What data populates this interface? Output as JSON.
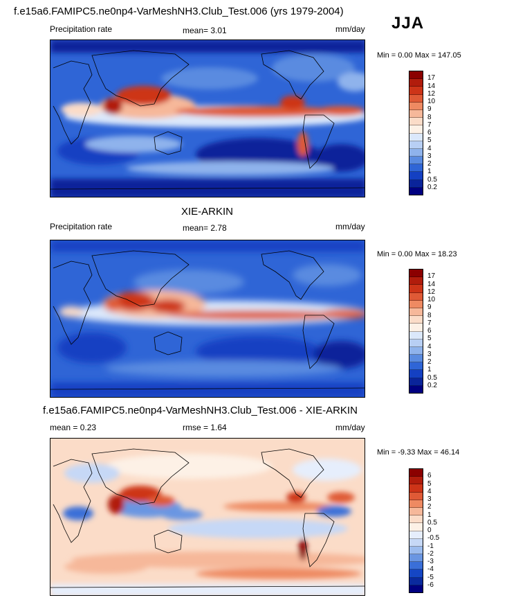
{
  "season": "JJA",
  "panels": [
    {
      "title": "f.e15a6.FAMIPC5.ne0np4-VarMeshNH3.Club_Test.006 (yrs 1979-2004)",
      "left_label": "Precipitation rate",
      "center_label": "mean=  3.01",
      "units": "mm/day",
      "minmax": "Min =   0.00 Max = 147.05",
      "colorbar": {
        "labels": [
          "17",
          "14",
          "12",
          "10",
          "9",
          "8",
          "7",
          "6",
          "5",
          "4",
          "3",
          "2",
          "1",
          "0.5",
          "0.2"
        ],
        "colors": [
          "#8b0000",
          "#b11c0c",
          "#cd3418",
          "#df5a36",
          "#ee8a62",
          "#f6b89a",
          "#fbdcc8",
          "#fdf1e6",
          "#dbe8fb",
          "#b8cff4",
          "#8fb3ec",
          "#5a8be0",
          "#2f65d6",
          "#1440c2",
          "#0a249a",
          "#000080"
        ]
      }
    },
    {
      "title": "XIE-ARKIN",
      "left_label": "Precipitation rate",
      "center_label": "mean=  2.78",
      "units": "mm/day",
      "minmax": "Min =   0.00 Max =  18.23",
      "colorbar": {
        "labels": [
          "17",
          "14",
          "12",
          "10",
          "9",
          "8",
          "7",
          "6",
          "5",
          "4",
          "3",
          "2",
          "1",
          "0.5",
          "0.2"
        ],
        "colors": [
          "#8b0000",
          "#b11c0c",
          "#cd3418",
          "#df5a36",
          "#ee8a62",
          "#f6b89a",
          "#fbdcc8",
          "#fdf1e6",
          "#dbe8fb",
          "#b8cff4",
          "#8fb3ec",
          "#5a8be0",
          "#2f65d6",
          "#1440c2",
          "#0a249a",
          "#000080"
        ]
      }
    },
    {
      "title": "f.e15a6.FAMIPC5.ne0np4-VarMeshNH3.Club_Test.006 - XIE-ARKIN",
      "left_label": "mean =   0.23",
      "center_label": "rmse =   1.64",
      "units": "mm/day",
      "minmax": "Min =  -9.33 Max =  46.14",
      "colorbar": {
        "labels": [
          "6",
          "5",
          "4",
          "3",
          "2",
          "1",
          "0.5",
          "0",
          "-0.5",
          "-1",
          "-2",
          "-3",
          "-4",
          "-5",
          "-6"
        ],
        "colors": [
          "#8b0000",
          "#b11c0c",
          "#cd3418",
          "#df5a36",
          "#ee8a62",
          "#f6b89a",
          "#fbdcc8",
          "#fdf1e6",
          "#e6eefc",
          "#c6d8f6",
          "#9cbcee",
          "#6a96e2",
          "#3a6fd8",
          "#1546c4",
          "#0a2a9e",
          "#000080"
        ]
      }
    }
  ]
}
